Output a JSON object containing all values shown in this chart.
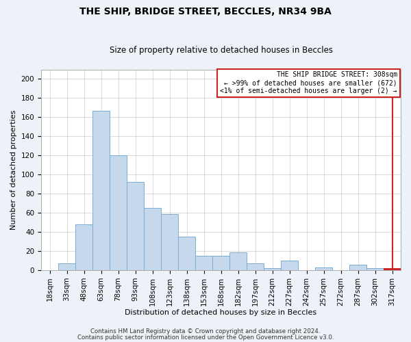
{
  "title": "THE SHIP, BRIDGE STREET, BECCLES, NR34 9BA",
  "subtitle": "Size of property relative to detached houses in Beccles",
  "xlabel": "Distribution of detached houses by size in Beccles",
  "ylabel": "Number of detached properties",
  "footer_line1": "Contains HM Land Registry data © Crown copyright and database right 2024.",
  "footer_line2": "Contains public sector information licensed under the Open Government Licence v3.0.",
  "categories": [
    "18sqm",
    "33sqm",
    "48sqm",
    "63sqm",
    "78sqm",
    "93sqm",
    "108sqm",
    "123sqm",
    "138sqm",
    "153sqm",
    "168sqm",
    "182sqm",
    "197sqm",
    "212sqm",
    "227sqm",
    "242sqm",
    "257sqm",
    "272sqm",
    "287sqm",
    "302sqm",
    "317sqm"
  ],
  "values": [
    0,
    7,
    48,
    167,
    120,
    92,
    65,
    59,
    35,
    15,
    15,
    19,
    7,
    2,
    10,
    0,
    3,
    0,
    6,
    2,
    2
  ],
  "highlight_index": 20,
  "bar_color": "#c5d8ec",
  "bar_edge_color": "#7aadd4",
  "highlight_color": "#cc2222",
  "annotation_line1": "THE SHIP BRIDGE STREET: 308sqm",
  "annotation_line2": "← >99% of detached houses are smaller (672)",
  "annotation_line3": "<1% of semi-detached houses are larger (2) →",
  "annotation_arrow_color": "#cc2222",
  "ylim": [
    0,
    210
  ],
  "yticks": [
    0,
    20,
    40,
    60,
    80,
    100,
    120,
    140,
    160,
    180,
    200
  ],
  "bg_color": "#edf2f8",
  "plot_bg_color": "#ffffff",
  "grid_color": "#cccccc",
  "title_fontsize": 10,
  "subtitle_fontsize": 8.5,
  "tick_fontsize": 7.5,
  "ylabel_fontsize": 8,
  "xlabel_fontsize": 8
}
